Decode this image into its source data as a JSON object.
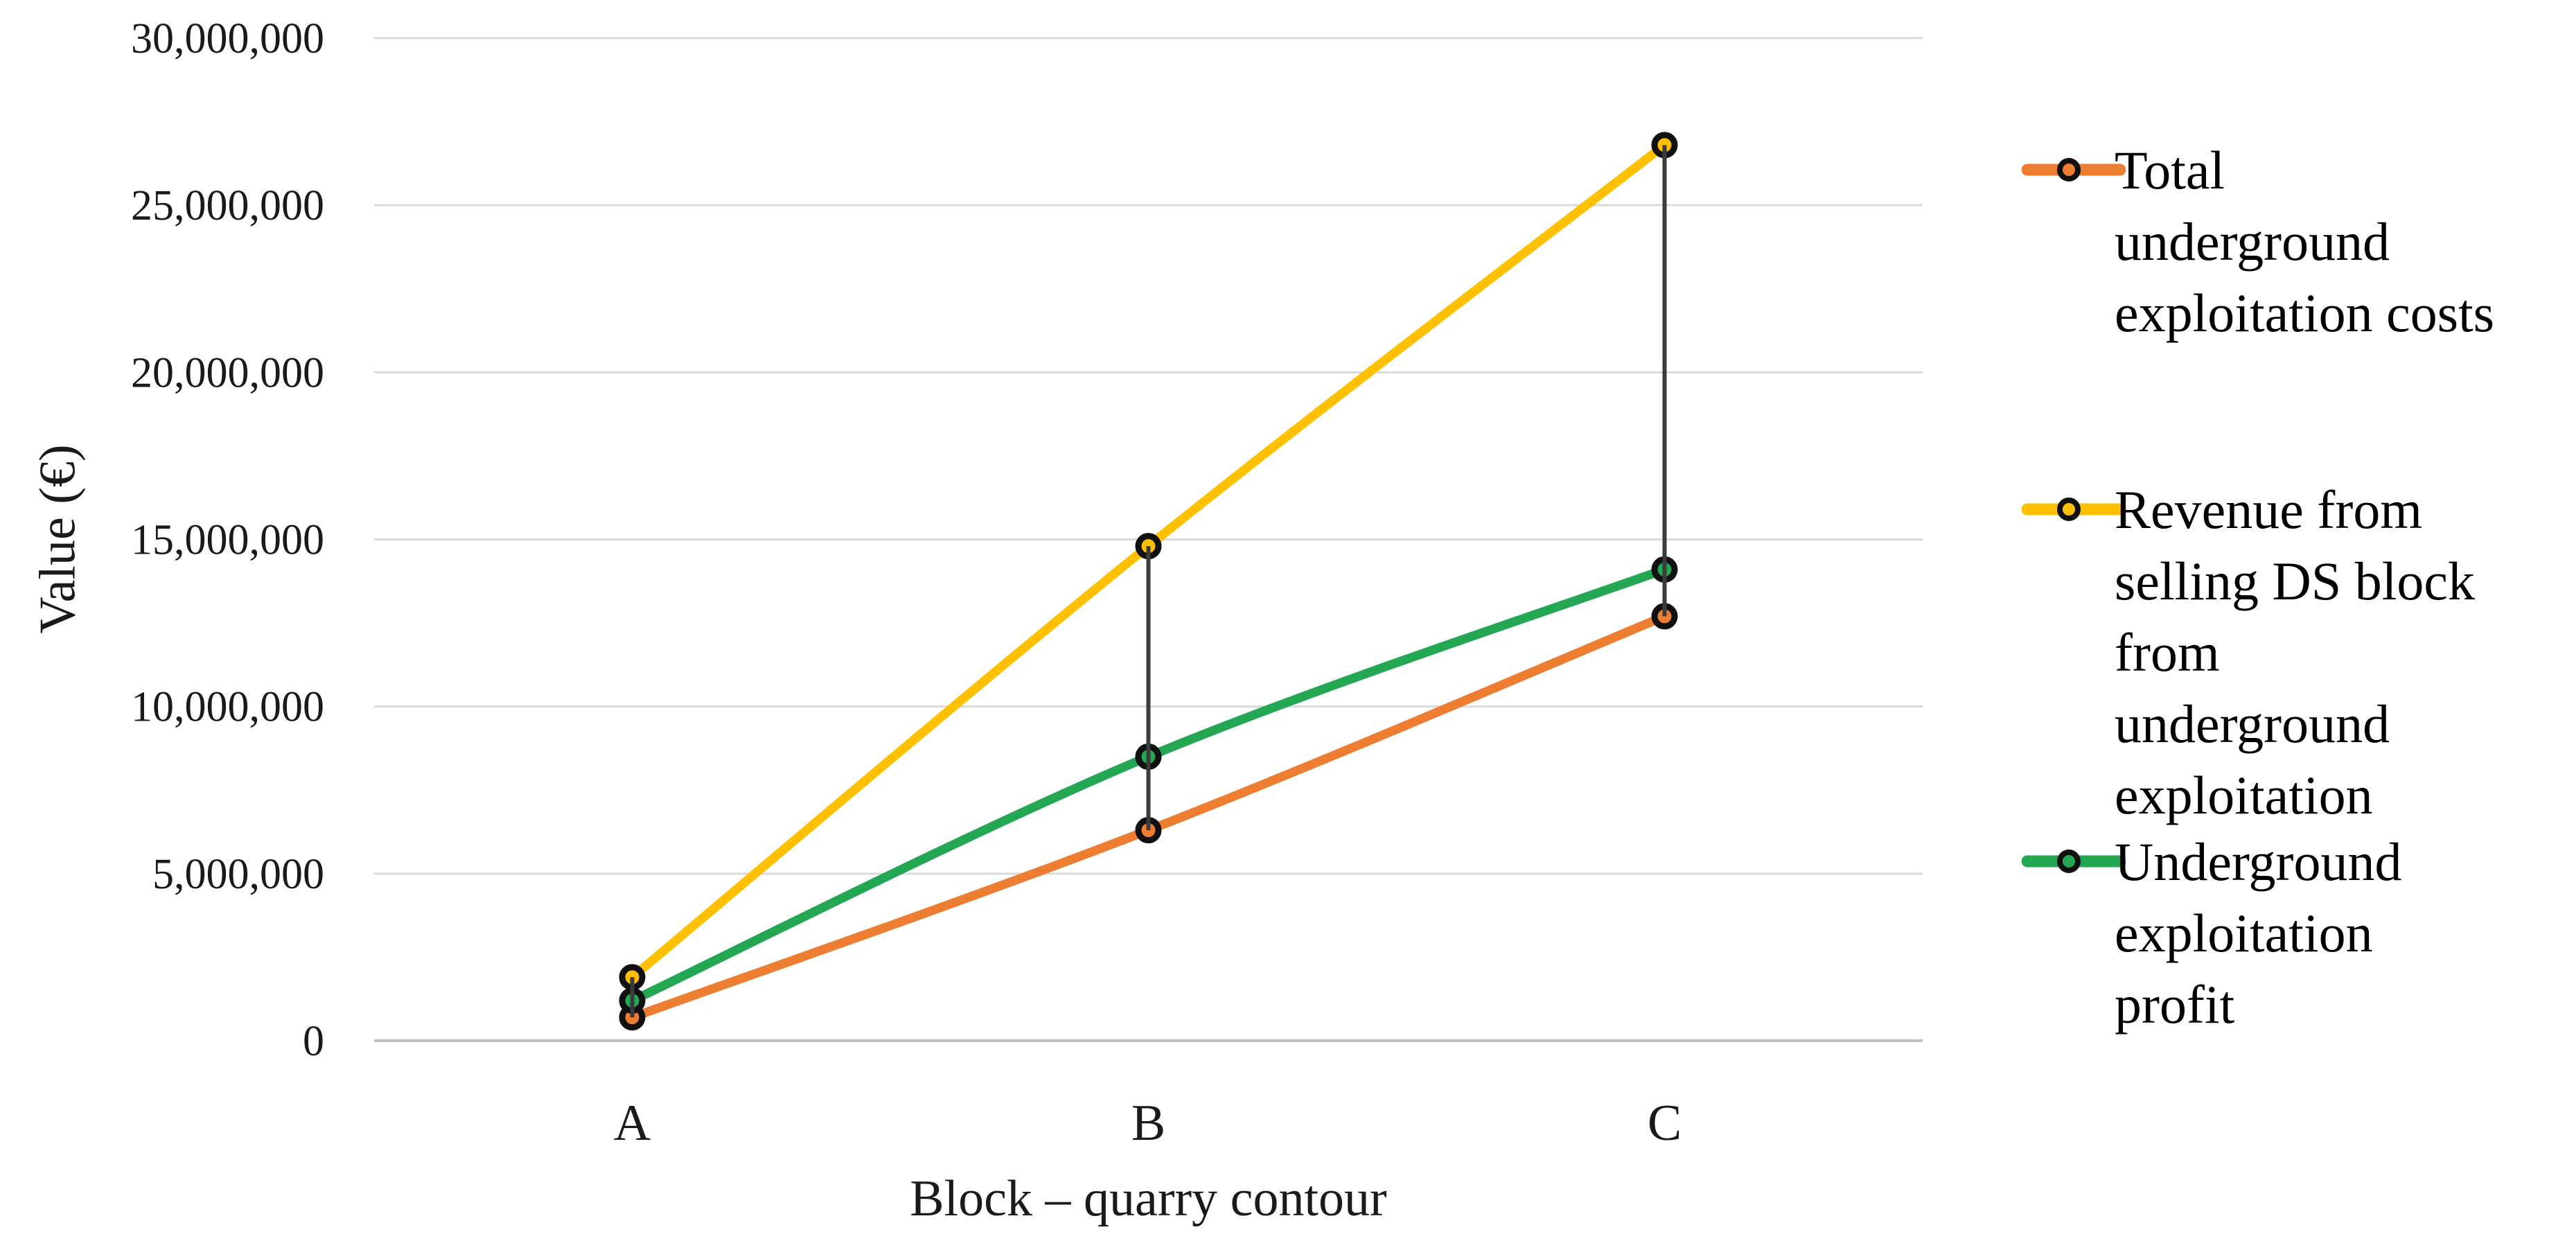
{
  "chart_data": {
    "type": "line",
    "title": "",
    "categories": [
      "A",
      "B",
      "C"
    ],
    "series": [
      {
        "name": "Total underground exploitation costs",
        "legend_lines": [
          "Total",
          "underground",
          "exploitation costs"
        ],
        "color": "#ED7D31",
        "values": [
          700000,
          6300000,
          12700000
        ]
      },
      {
        "name": "Revenue from selling DS block from underground exploitation",
        "legend_lines": [
          "Revenue from",
          "selling DS block",
          "from",
          "underground",
          "exploitation"
        ],
        "color": "#FFC000",
        "values": [
          1900000,
          14800000,
          26800000
        ]
      },
      {
        "name": "Underground exploitation profit",
        "legend_lines": [
          "Underground",
          "exploitation",
          "profit"
        ],
        "color": "#23A753",
        "values": [
          1200000,
          8500000,
          14100000
        ]
      }
    ],
    "xlabel": "Block – quarry contour",
    "ylabel": "Value (€)",
    "ylim": [
      0,
      30000000
    ],
    "ytick_step": 5000000,
    "y_tick_labels": [
      "30,000,000",
      "25,000,000",
      "20,000,000",
      "15,000,000",
      "10,000,000",
      "5,000,000",
      "0"
    ],
    "grid": true,
    "legend_position": "right",
    "high_low_lines": true,
    "line_style": "smooth",
    "marker": "circle"
  },
  "colors": {
    "background": "#FFFFFF",
    "grid": "#D9D9D9",
    "axis": "#BFBFBF",
    "high_low_line": "#3B3B3B",
    "marker_outline": "#111111",
    "text": "#1A1A1A"
  }
}
